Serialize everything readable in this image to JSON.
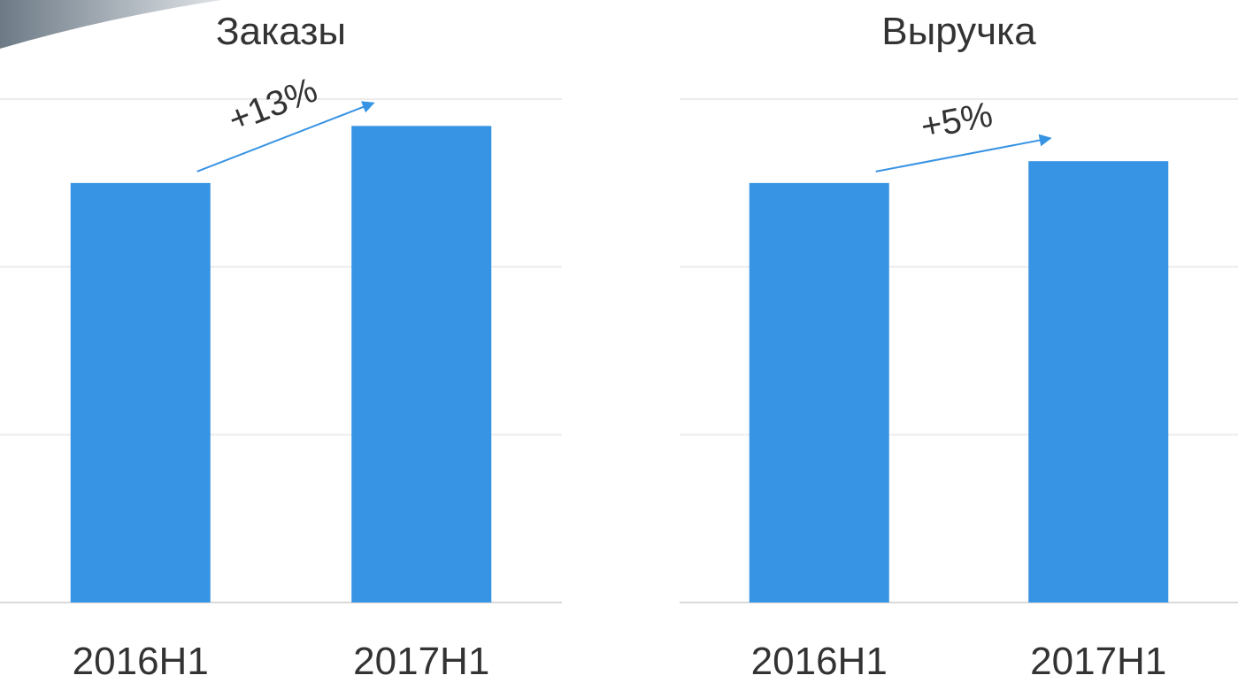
{
  "chart_data": [
    {
      "type": "bar",
      "title": "Заказы",
      "categories": [
        "2016H1",
        "2017H1"
      ],
      "values": [
        2.5,
        2.84
      ],
      "color": "#3793e3",
      "ylim": [
        0,
        3
      ],
      "yticks": [
        0,
        1,
        2,
        3
      ],
      "grid": true,
      "annotation": "+13%"
    },
    {
      "type": "bar",
      "title": "Выручка",
      "categories": [
        "2016H1",
        "2017H1"
      ],
      "values": [
        2.5,
        2.63
      ],
      "color": "#3793e3",
      "ylim": [
        0,
        3
      ],
      "yticks": [
        0,
        1,
        2,
        3
      ],
      "grid": true,
      "annotation": "+5%"
    }
  ]
}
